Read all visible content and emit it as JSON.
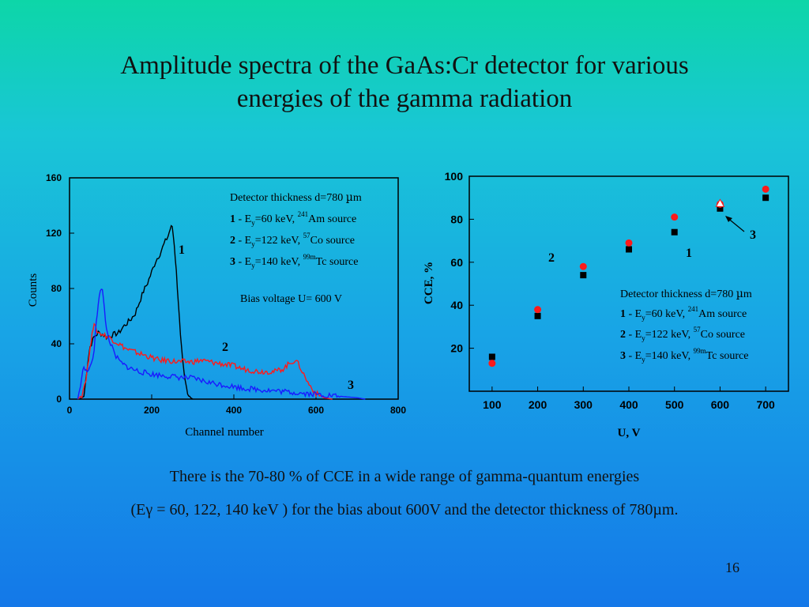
{
  "slide": {
    "title_line1": "Amplitude spectra of the GaAs:Cr detector for various",
    "title_line2": "energies of the  gamma radiation",
    "caption_line1": "There is the 70-80 % of CCE  in a wide range of gamma-quantum energies",
    "caption_line2": "(Eγ = 60, 122, 140 keV ) for the  bias about 600V and the detector thickness of 780µm.",
    "slide_number": "16",
    "colors": {
      "black": "#000000",
      "red": "#ff1a1a",
      "blue": "#1a1aff"
    }
  },
  "chart_data": [
    {
      "type": "line",
      "title": "",
      "xlabel": "Channel number",
      "ylabel": "Counts",
      "xlim": [
        0,
        800
      ],
      "ylim": [
        0,
        160
      ],
      "xticks": [
        0,
        200,
        400,
        600,
        800
      ],
      "yticks": [
        0,
        40,
        80,
        120,
        160
      ],
      "legend": {
        "position": "top-right",
        "lines": [
          "Detector thickness d=780 µm",
          "1 - Ey=60 keV, 241Am source",
          "2 - Ey=122 keV, 57Co source",
          "3 - Ey=140 keV, 99mTc source"
        ]
      },
      "annotation": "Bias voltage U= 600 V",
      "series": [
        {
          "name": "1",
          "color": "#000000",
          "x": [
            25,
            35,
            40,
            45,
            50,
            60,
            70,
            80,
            90,
            100,
            110,
            120,
            130,
            140,
            150,
            160,
            170,
            180,
            190,
            200,
            210,
            220,
            230,
            240,
            245,
            250,
            255,
            260,
            265,
            270,
            275,
            280,
            285,
            290,
            295,
            300
          ],
          "y": [
            0,
            2,
            15,
            28,
            38,
            45,
            48,
            47,
            45,
            46,
            47,
            48,
            52,
            55,
            58,
            62,
            70,
            78,
            84,
            92,
            100,
            105,
            112,
            118,
            123,
            125,
            112,
            92,
            70,
            45,
            28,
            15,
            8,
            3,
            1,
            0
          ]
        },
        {
          "name": "2",
          "color": "#ff1a1a",
          "x": [
            20,
            30,
            40,
            50,
            55,
            60,
            70,
            80,
            100,
            120,
            140,
            160,
            180,
            200,
            220,
            240,
            260,
            280,
            300,
            320,
            340,
            360,
            380,
            400,
            420,
            440,
            460,
            480,
            500,
            520,
            540,
            550,
            560,
            570,
            580,
            590,
            600,
            620,
            640
          ],
          "y": [
            0,
            3,
            15,
            35,
            50,
            53,
            48,
            47,
            44,
            40,
            36,
            34,
            32,
            30,
            28,
            28,
            27,
            27,
            27,
            28,
            27,
            26,
            25,
            24,
            22,
            21,
            20,
            20,
            20,
            22,
            27,
            28,
            24,
            18,
            12,
            8,
            4,
            1,
            0
          ]
        },
        {
          "name": "3",
          "color": "#1a1aff",
          "x": [
            20,
            30,
            35,
            40,
            50,
            60,
            65,
            70,
            75,
            80,
            85,
            90,
            100,
            110,
            120,
            130,
            150,
            170,
            200,
            230,
            260,
            300,
            340,
            380,
            420,
            460,
            500,
            540,
            580,
            620,
            660,
            700,
            720
          ],
          "y": [
            0,
            15,
            25,
            20,
            22,
            35,
            55,
            70,
            80,
            78,
            65,
            50,
            40,
            32,
            28,
            25,
            22,
            20,
            18,
            17,
            16,
            15,
            12,
            10,
            8,
            7,
            6,
            5,
            4,
            3,
            2,
            1,
            0
          ]
        }
      ],
      "curve_labels": [
        "1",
        "2",
        "3"
      ]
    },
    {
      "type": "scatter",
      "title": "",
      "xlabel": "U, V",
      "ylabel": "CCE, %",
      "xlim": [
        50,
        750
      ],
      "ylim": [
        0,
        100
      ],
      "xticks": [
        100,
        200,
        300,
        400,
        500,
        600,
        700
      ],
      "yticks": [
        20,
        40,
        60,
        80,
        100
      ],
      "legend": {
        "position": "bottom-right",
        "lines": [
          "Detector thickness d=780 µm",
          "1 - Ey=60 keV, 241Am source",
          "2 - Ey=122 keV, 57Co source",
          "3 - Ey=140 keV, 99mTc source"
        ]
      },
      "series": [
        {
          "name": "1",
          "marker": "square",
          "color": "#000000",
          "x": [
            100,
            200,
            300,
            400,
            500,
            600,
            700
          ],
          "y": [
            16,
            35,
            54,
            66,
            74,
            85,
            90
          ]
        },
        {
          "name": "2",
          "marker": "circle",
          "color": "#ff1a1a",
          "x": [
            100,
            200,
            300,
            400,
            500,
            600,
            700
          ],
          "y": [
            13,
            38,
            58,
            69,
            81,
            87,
            94
          ]
        },
        {
          "name": "3",
          "marker": "triangle",
          "color": "#ffffff",
          "x": [
            600
          ],
          "y": [
            87
          ]
        }
      ],
      "point_labels": [
        "1",
        "2",
        "3"
      ]
    }
  ]
}
